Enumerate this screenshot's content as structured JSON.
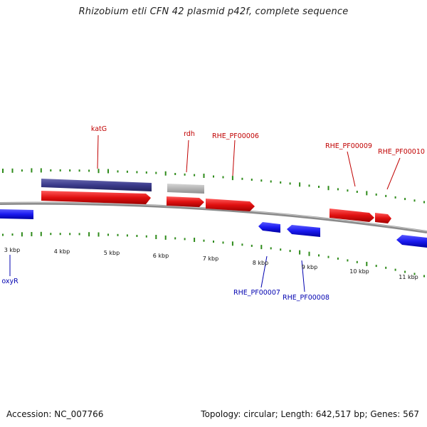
{
  "title": "Rhizobium etli CFN 42 plasmid p42f, complete sequence",
  "footer": {
    "accession": "Accession: NC_007766",
    "stats": "Topology: circular; Length: 642,517 bp; Genes: 567"
  },
  "colors": {
    "background": "#ffffff",
    "backbone": "#8c8c8c",
    "gc_ticks": "#2e8b1a",
    "forward_gene": "#e02020",
    "reverse_gene": "#2020e8",
    "forward_label": "#c00000",
    "reverse_label": "#0000b0",
    "upper_band": "#3b3b8c",
    "grey_band": "#b8b8b8"
  },
  "scale_labels": [
    "3 kbp",
    "4 kbp",
    "5 kbp",
    "6 kbp",
    "7 kbp",
    "8 kbp",
    "9 kbp",
    "10 kbp",
    "11 kbp"
  ],
  "gene_labels": {
    "forward": [
      "katG",
      "rdh",
      "RHE_PF00006",
      "RHE_PF00009",
      "RHE_PF00010"
    ],
    "reverse": [
      "oxyR",
      "RHE_PF00007",
      "RHE_PF00008"
    ]
  }
}
